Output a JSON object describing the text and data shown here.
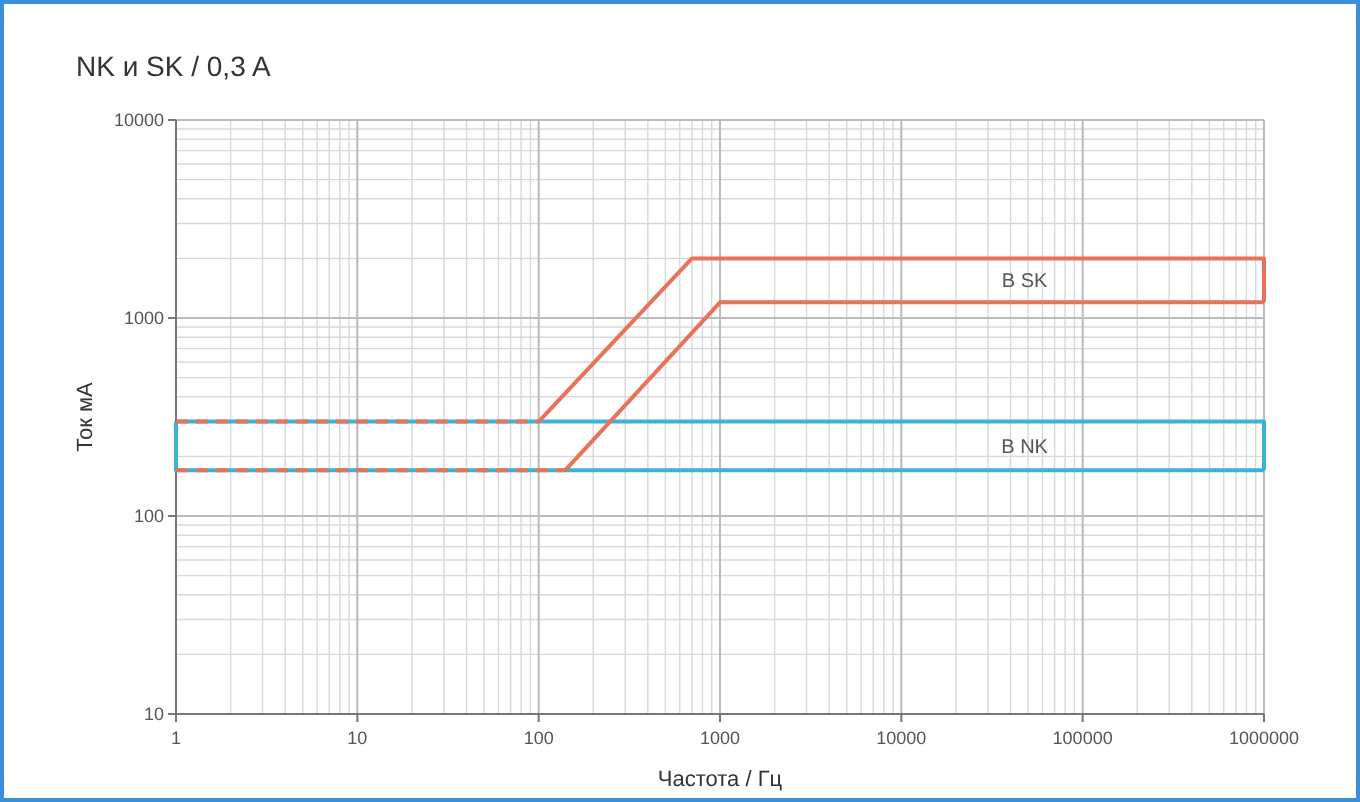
{
  "chart_data": {
    "type": "line",
    "title": "NK и SK / 0,3 A",
    "xlabel": "Частота / Гц",
    "ylabel": "Ток мА",
    "log": "xy",
    "grid": true,
    "legend": false,
    "marker": "none",
    "line_style": "solid",
    "xlim": [
      1,
      1000000
    ],
    "xticks": [
      1,
      10,
      100,
      1000,
      10000,
      100000,
      1000000
    ],
    "ylim": [
      10,
      10000
    ],
    "yticks": [
      10,
      100,
      1000,
      10000
    ],
    "series": [
      {
        "name": "B NK",
        "color": "#3bb3d8",
        "x": [
          1,
          1000000,
          1000000
        ],
        "values": [
          300,
          300,
          170
        ]
      },
      {
        "color": "#3bb3d8",
        "x": [
          1,
          1,
          1000000
        ],
        "values": [
          300,
          170,
          170
        ]
      },
      {
        "name": "B SK",
        "color": "#e8735a",
        "x": [
          100,
          700,
          1000000,
          1000000
        ],
        "values": [
          300,
          2000,
          2000,
          1200
        ]
      },
      {
        "color": "#e8735a",
        "x": [
          140,
          1000,
          1000000
        ],
        "values": [
          170,
          1200,
          1200
        ]
      },
      {
        "color": "#e8735a",
        "line_style": "dashed",
        "x": [
          1,
          100
        ],
        "values": [
          300,
          300
        ]
      },
      {
        "color": "#e8735a",
        "line_style": "dashed",
        "x": [
          1,
          140
        ],
        "values": [
          170,
          170
        ]
      }
    ]
  }
}
